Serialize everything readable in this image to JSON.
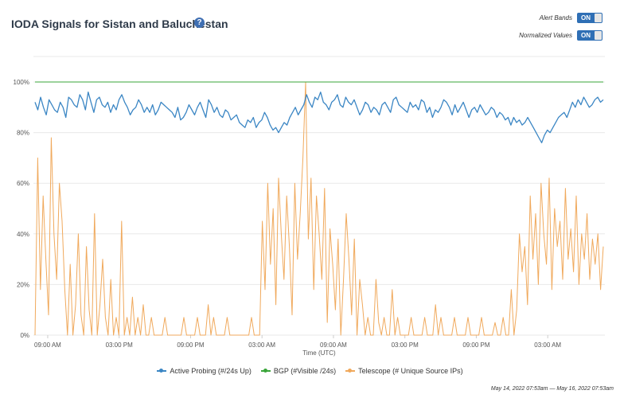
{
  "title": "IODA Signals for Sistan and Baluchestan",
  "help_icon": "?",
  "controls": {
    "alert_bands": {
      "label": "Alert Bands",
      "state": "ON"
    },
    "normalized_values": {
      "label": "Normalized Values",
      "state": "ON"
    }
  },
  "date_range": "May 14, 2022 07:53am — May 16, 2022 07:53am",
  "colors": {
    "active_probing": "#3b86c4",
    "bgp": "#3aa53a",
    "telescope": "#f0a95c",
    "grid": "#e8e8e8"
  },
  "chart_data": {
    "type": "line",
    "xlabel": "Time (UTC)",
    "ylabel": "",
    "x_ticks": [
      "09:00 AM",
      "03:00 PM",
      "09:00 PM",
      "03:00 AM",
      "09:00 AM",
      "03:00 PM",
      "09:00 PM",
      "03:00 AM"
    ],
    "y_ticks": [
      "0%",
      "20%",
      "40%",
      "60%",
      "80%",
      "100%"
    ],
    "ylim": [
      0,
      100
    ],
    "x_range_hours": [
      0,
      48
    ],
    "legend_position": "bottom",
    "series": [
      {
        "name": "Active Probing (#/24s Up)",
        "key": "active_probing",
        "values": [
          92,
          89,
          94,
          90,
          87,
          93,
          91,
          89,
          88,
          92,
          90,
          86,
          94,
          93,
          91,
          90,
          95,
          93,
          89,
          96,
          92,
          88,
          93,
          94,
          91,
          90,
          92,
          88,
          91,
          89,
          93,
          95,
          92,
          90,
          87,
          89,
          90,
          93,
          91,
          88,
          90,
          88,
          91,
          87,
          89,
          92,
          91,
          90,
          89,
          88,
          86,
          90,
          85,
          86,
          88,
          91,
          89,
          87,
          90,
          92,
          89,
          86,
          93,
          91,
          88,
          90,
          87,
          86,
          89,
          88,
          85,
          86,
          87,
          84,
          83,
          82,
          85,
          84,
          86,
          82,
          84,
          85,
          88,
          86,
          83,
          81,
          82,
          80,
          82,
          84,
          83,
          86,
          88,
          90,
          87,
          89,
          91,
          95,
          92,
          90,
          94,
          93,
          96,
          92,
          91,
          89,
          92,
          93,
          95,
          91,
          90,
          94,
          92,
          91,
          93,
          90,
          87,
          89,
          92,
          91,
          88,
          90,
          89,
          87,
          91,
          92,
          90,
          88,
          93,
          94,
          91,
          90,
          89,
          88,
          92,
          90,
          91,
          89,
          93,
          92,
          88,
          90,
          86,
          89,
          88,
          90,
          93,
          92,
          90,
          87,
          91,
          88,
          90,
          92,
          89,
          86,
          89,
          90,
          88,
          91,
          89,
          87,
          88,
          90,
          89,
          86,
          88,
          87,
          85,
          86,
          83,
          86,
          84,
          85,
          83,
          84,
          86,
          84,
          82,
          80,
          78,
          76,
          79,
          81,
          80,
          82,
          84,
          86,
          87,
          88,
          86,
          89,
          92,
          90,
          93,
          91,
          94,
          92,
          90,
          91,
          93,
          94,
          92,
          93
        ]
      },
      {
        "name": "BGP (#Visible /24s)",
        "key": "bgp",
        "values": [
          100,
          100,
          100,
          100,
          100,
          100,
          100,
          100,
          100,
          100,
          100,
          100,
          100,
          100,
          100,
          100,
          100,
          100,
          100,
          100,
          100,
          100,
          100,
          100,
          100,
          100,
          100,
          100,
          100,
          100,
          100,
          100,
          100,
          100,
          100,
          100,
          100,
          100,
          100,
          100,
          100,
          100,
          100,
          100,
          100,
          100,
          100,
          100,
          100
        ]
      },
      {
        "name": "Telescope (# Unique Source IPs)",
        "key": "telescope",
        "values": [
          0,
          70,
          18,
          55,
          30,
          8,
          78,
          40,
          22,
          60,
          45,
          18,
          0,
          28,
          0,
          12,
          40,
          8,
          0,
          35,
          10,
          0,
          48,
          0,
          12,
          30,
          7,
          0,
          22,
          0,
          7,
          0,
          45,
          0,
          7,
          0,
          15,
          0,
          7,
          0,
          12,
          0,
          0,
          7,
          0,
          0,
          0,
          0,
          7,
          0,
          0,
          0,
          0,
          0,
          0,
          7,
          0,
          0,
          0,
          0,
          7,
          0,
          0,
          0,
          12,
          0,
          7,
          0,
          0,
          0,
          0,
          7,
          0,
          0,
          0,
          0,
          0,
          0,
          0,
          0,
          7,
          0,
          0,
          0,
          45,
          18,
          60,
          28,
          50,
          12,
          62,
          40,
          22,
          55,
          35,
          8,
          60,
          30,
          48,
          70,
          100,
          38,
          62,
          18,
          55,
          40,
          22,
          58,
          5,
          42,
          28,
          10,
          38,
          0,
          22,
          48,
          30,
          8,
          38,
          0,
          22,
          12,
          0,
          7,
          0,
          0,
          22,
          5,
          0,
          7,
          0,
          0,
          18,
          0,
          7,
          0,
          0,
          0,
          0,
          7,
          0,
          0,
          0,
          0,
          7,
          0,
          0,
          0,
          12,
          0,
          7,
          0,
          0,
          0,
          0,
          7,
          0,
          0,
          0,
          0,
          7,
          0,
          0,
          0,
          0,
          7,
          0,
          0,
          0,
          0,
          5,
          0,
          0,
          7,
          0,
          0,
          18,
          0,
          10,
          40,
          25,
          35,
          12,
          55,
          30,
          48,
          20,
          60,
          40,
          28,
          62,
          18,
          50,
          35,
          45,
          22,
          58,
          30,
          42,
          25,
          55,
          20,
          40,
          30,
          48,
          22,
          38,
          28,
          40,
          18,
          35
        ]
      }
    ]
  }
}
